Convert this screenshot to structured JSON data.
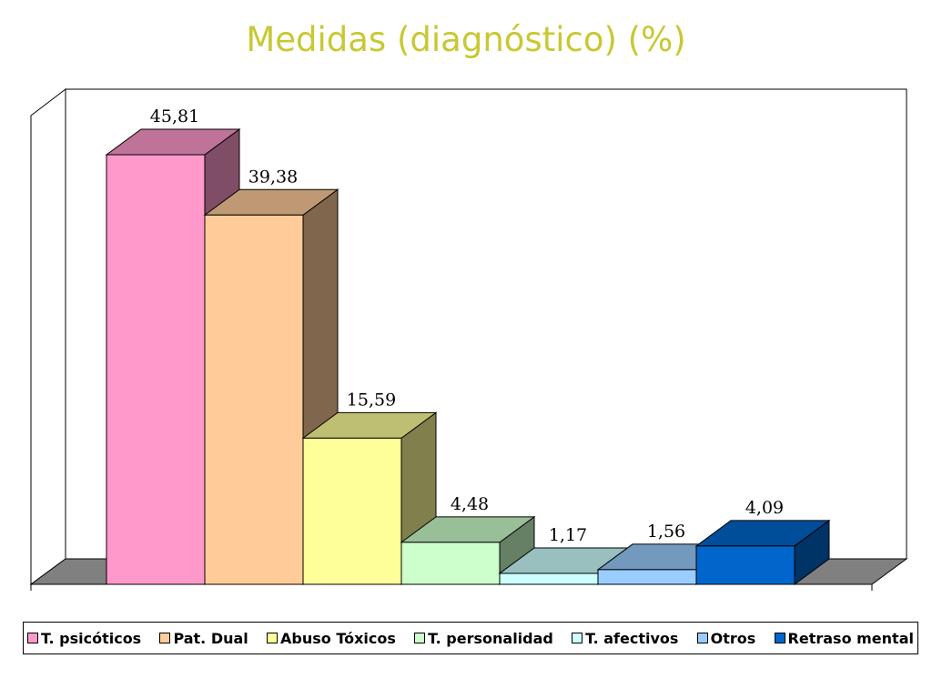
{
  "chart_data": {
    "type": "bar",
    "title": "Medidas (diagnóstico) (%)",
    "categories": [
      "T. psicóticos",
      "Pat. Dual",
      "Abuso Tóxicos",
      "T. personalidad",
      "T. afectivos",
      "Otros",
      "Retraso mental"
    ],
    "values": [
      45.81,
      39.38,
      15.59,
      4.48,
      1.17,
      1.56,
      4.09
    ],
    "value_labels": [
      "45,81",
      "39,38",
      "15,59",
      "4,48",
      "1,17",
      "1,56",
      "4,09"
    ],
    "colors": [
      "#ff99cc",
      "#ffcc99",
      "#ffff99",
      "#ccffcc",
      "#ccffff",
      "#99ccff",
      "#0066cc"
    ],
    "ylim": [
      0,
      50
    ],
    "xlabel": "",
    "ylabel": "",
    "grid": false,
    "legend_position": "bottom",
    "style": "3d"
  }
}
